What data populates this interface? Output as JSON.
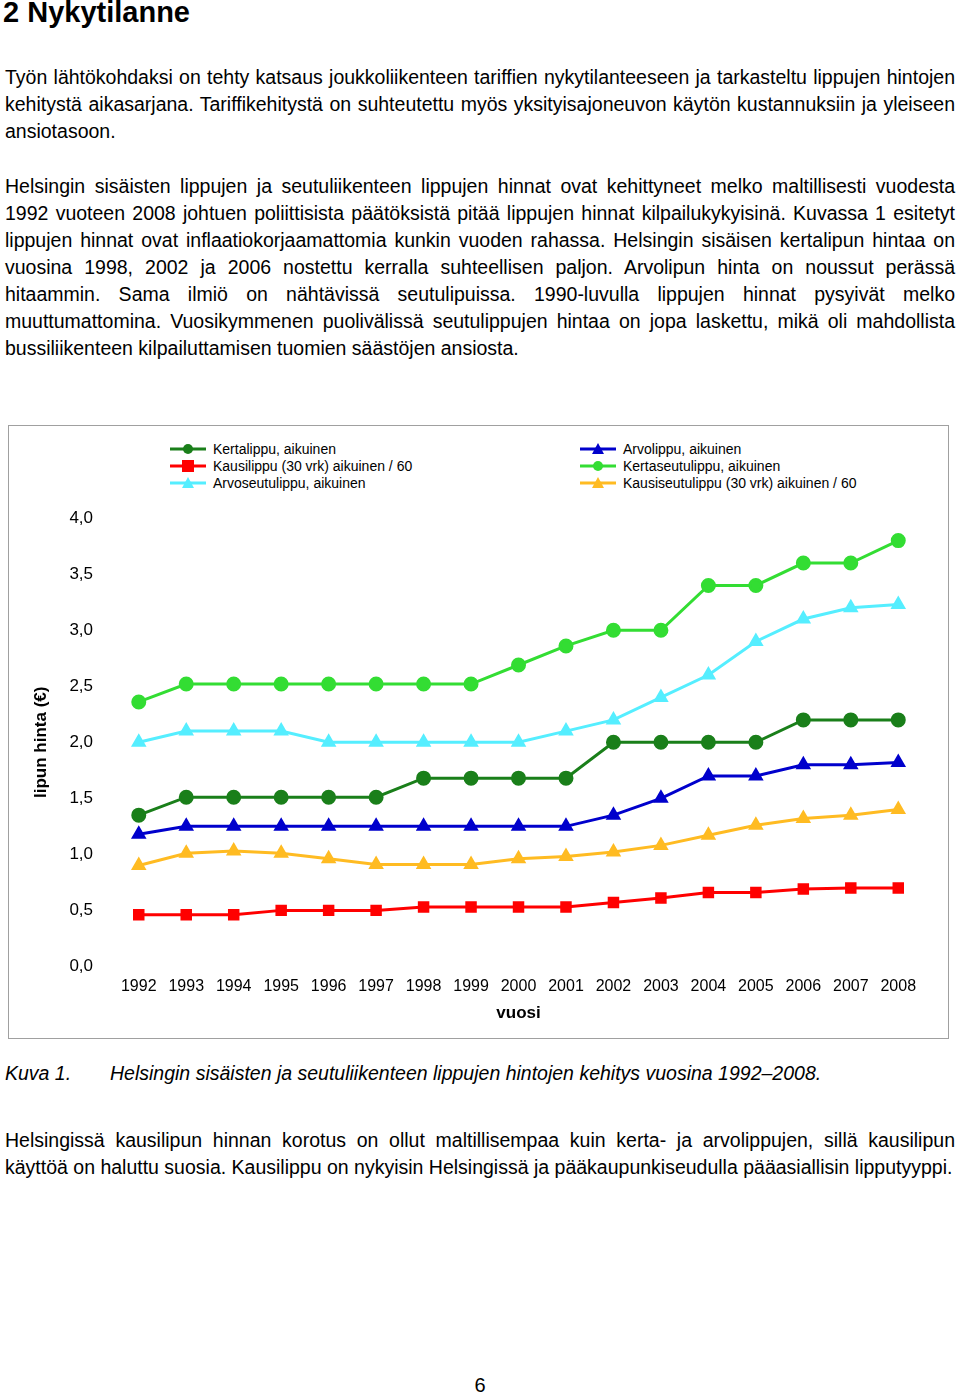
{
  "heading": "2 Nykytilanne",
  "paragraphs": [
    "Työn lähtökohdaksi on tehty katsaus joukkoliikenteen tariffien nykytilanteeseen ja tarkasteltu lippujen hintojen kehitystä aikasarjana. Tariffikehitystä on suhteutettu myös yksityisajoneuvon käytön kustannuksiin ja yleiseen ansiotasoon.",
    "Helsingin sisäisten lippujen ja seutuliikenteen lippujen hinnat ovat kehittyneet melko maltillisesti vuodesta 1992 vuoteen 2008 johtuen poliittisista päätöksistä pitää lippujen hinnat kilpailukykyisinä. Kuvassa 1 esitetyt lippujen hinnat ovat inflaatiokorjaamattomia kunkin vuoden rahassa. Helsingin sisäisen kertalipun hintaa on vuosina 1998, 2002 ja 2006 nostettu kerralla suhteellisen paljon. Arvolipun hinta on noussut perässä hitaammin. Sama ilmiö on nähtävissä seutulipuissa. 1990-luvulla lippujen hinnat pysyivät melko muuttumattomina. Vuosikymmenen puolivälissä seutulippujen hintaa on jopa laskettu, mikä oli mahdollista bussiliikenteen kilpailuttamisen tuomien säästöjen ansiosta."
  ],
  "chart_data": {
    "type": "line",
    "categories": [
      "1992",
      "1993",
      "1994",
      "1995",
      "1996",
      "1997",
      "1998",
      "1999",
      "2000",
      "2001",
      "2002",
      "2003",
      "2004",
      "2005",
      "2006",
      "2007",
      "2008"
    ],
    "series": [
      {
        "name": "Kertalippu, aikuinen",
        "color": "#1a7f1a",
        "marker": "circle",
        "values": [
          1.35,
          1.51,
          1.51,
          1.51,
          1.51,
          1.51,
          1.68,
          1.68,
          1.68,
          1.68,
          2.0,
          2.0,
          2.0,
          2.0,
          2.2,
          2.2,
          2.2
        ]
      },
      {
        "name": "Arvolippu, aikuinen",
        "color": "#0000cc",
        "marker": "triangle",
        "values": [
          1.18,
          1.25,
          1.25,
          1.25,
          1.25,
          1.25,
          1.25,
          1.25,
          1.25,
          1.25,
          1.35,
          1.5,
          1.7,
          1.7,
          1.8,
          1.8,
          1.82
        ]
      },
      {
        "name": "Kausilippu (30 vrk) aikuinen / 60",
        "color": "#ff0000",
        "marker": "square",
        "values": [
          0.46,
          0.46,
          0.46,
          0.5,
          0.5,
          0.5,
          0.53,
          0.53,
          0.53,
          0.53,
          0.57,
          0.61,
          0.66,
          0.66,
          0.69,
          0.7,
          0.7
        ]
      },
      {
        "name": "Kertaseutulippu, aikuinen",
        "color": "#33dd33",
        "marker": "circle",
        "values": [
          2.36,
          2.52,
          2.52,
          2.52,
          2.52,
          2.52,
          2.52,
          2.52,
          2.69,
          2.86,
          3.0,
          3.0,
          3.4,
          3.4,
          3.6,
          3.6,
          3.8
        ]
      },
      {
        "name": "Arvoseutulippu, aikuinen",
        "color": "#55eeff",
        "marker": "triangle",
        "values": [
          2.0,
          2.1,
          2.1,
          2.1,
          2.0,
          2.0,
          2.0,
          2.0,
          2.0,
          2.1,
          2.2,
          2.4,
          2.6,
          2.9,
          3.1,
          3.2,
          3.23
        ]
      },
      {
        "name": "Kausiseutulippu (30 vrk) aikuinen / 60",
        "color": "#ffbb22",
        "marker": "triangle",
        "values": [
          0.9,
          1.01,
          1.03,
          1.01,
          0.96,
          0.91,
          0.91,
          0.91,
          0.96,
          0.98,
          1.02,
          1.08,
          1.17,
          1.26,
          1.32,
          1.35,
          1.4
        ]
      }
    ],
    "x_label": "vuosi",
    "y_label": "lipun hinta (€)",
    "ylim": [
      0,
      4
    ],
    "yticks": [
      {
        "value": 0,
        "label": "0,0"
      },
      {
        "value": 0.5,
        "label": "0,5"
      },
      {
        "value": 1,
        "label": "1,0"
      },
      {
        "value": 1.5,
        "label": "1,5"
      },
      {
        "value": 2,
        "label": "2,0"
      },
      {
        "value": 2.5,
        "label": "2,5"
      },
      {
        "value": 3,
        "label": "3,0"
      },
      {
        "value": 3.5,
        "label": "3,5"
      },
      {
        "value": 4,
        "label": "4,0"
      }
    ],
    "grid": false,
    "legend": "top"
  },
  "caption": {
    "label": "Kuva 1.",
    "text": "Helsingin sisäisten ja seutuliikenteen lippujen hintojen kehitys vuosina 1992–2008."
  },
  "paragraphs_after": [
    "Helsingissä kausilipun hinnan korotus on ollut maltillisempaa kuin kerta- ja arvolippujen, sillä kausilipun käyttöä on haluttu suosia. Kausilippu on nykyisin Helsingissä ja pääkaupunkiseudulla pääasiallisin lipputyyppi."
  ],
  "page_number": "6"
}
